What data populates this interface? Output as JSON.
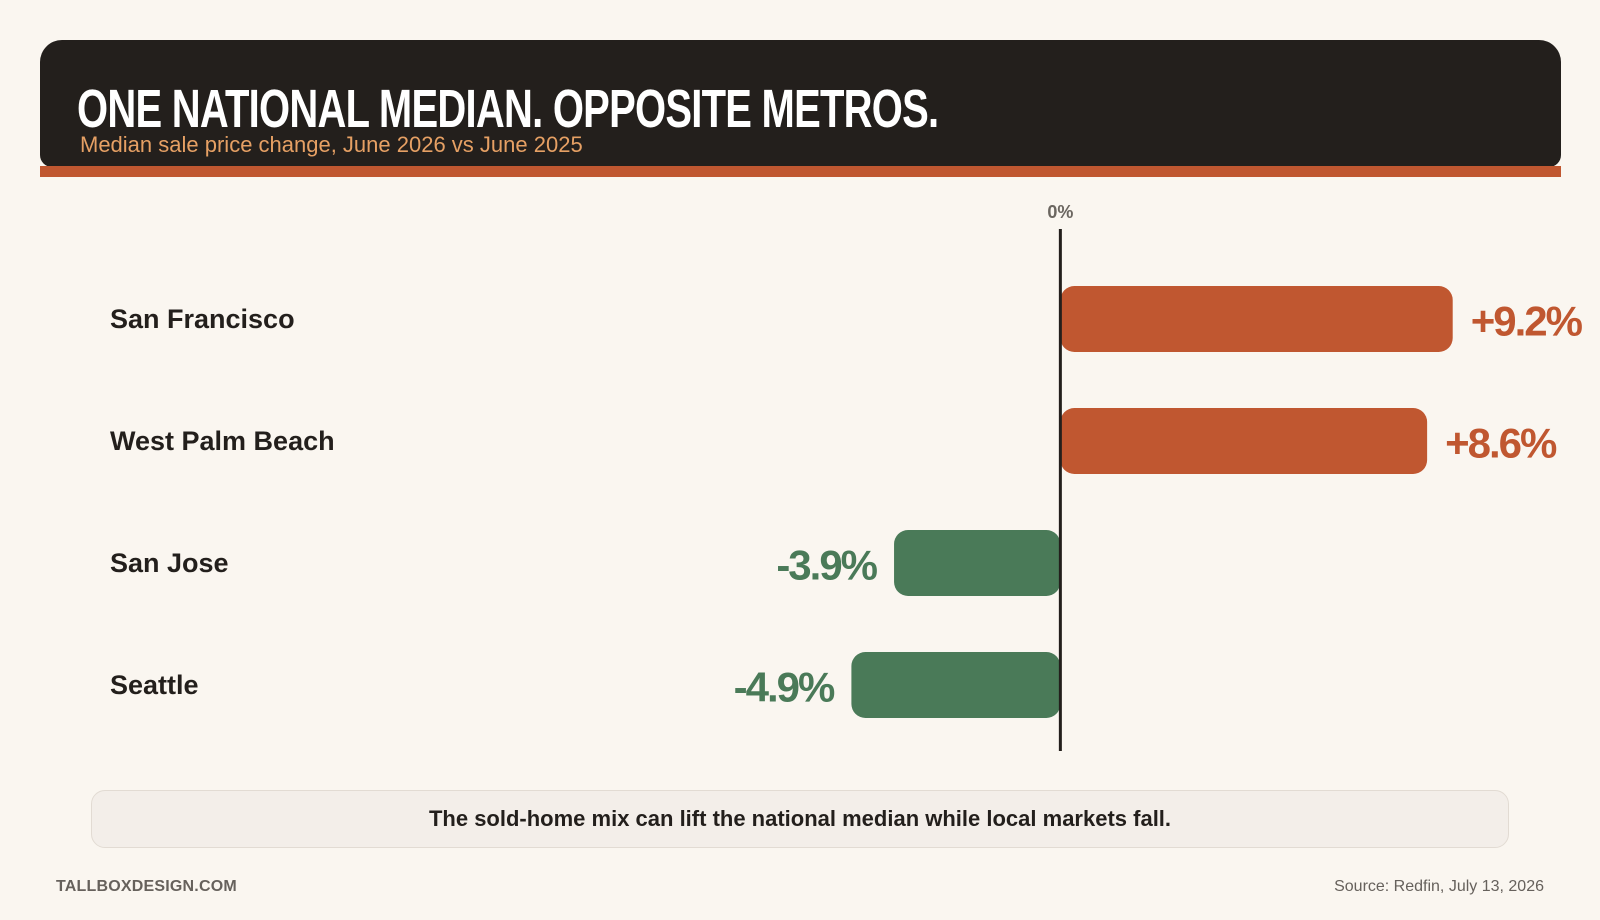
{
  "header": {
    "title": "ONE NATIONAL MEDIAN. OPPOSITE METROS.",
    "subtitle": "Median sale price change, June 2026 vs June 2025"
  },
  "chart_data": {
    "type": "bar",
    "orientation": "horizontal",
    "title": "ONE NATIONAL MEDIAN. OPPOSITE METROS.",
    "subtitle": "Median sale price change, June 2026 vs June 2025",
    "zero_label": "0%",
    "categories": [
      "San Francisco",
      "West Palm Beach",
      "San Jose",
      "Seattle"
    ],
    "values": [
      9.2,
      8.6,
      -3.9,
      -4.9
    ],
    "value_labels": [
      "+9.2%",
      "+8.6%",
      "-3.9%",
      "-4.9%"
    ],
    "unit": "%",
    "xlim": [
      -14.5,
      11.2
    ],
    "grid": false,
    "legend": "none"
  },
  "colors": {
    "positive": "#c05730",
    "negative": "#4a7a58",
    "axis": "#231f1c",
    "header_bg": "#231f1c",
    "accent": "#e6a064"
  },
  "callout": "The sold-home mix can lift the national median while local markets fall.",
  "footer": {
    "brand": "TALLBOXDESIGN.COM",
    "source": "Source: Redfin, July 13, 2026"
  }
}
